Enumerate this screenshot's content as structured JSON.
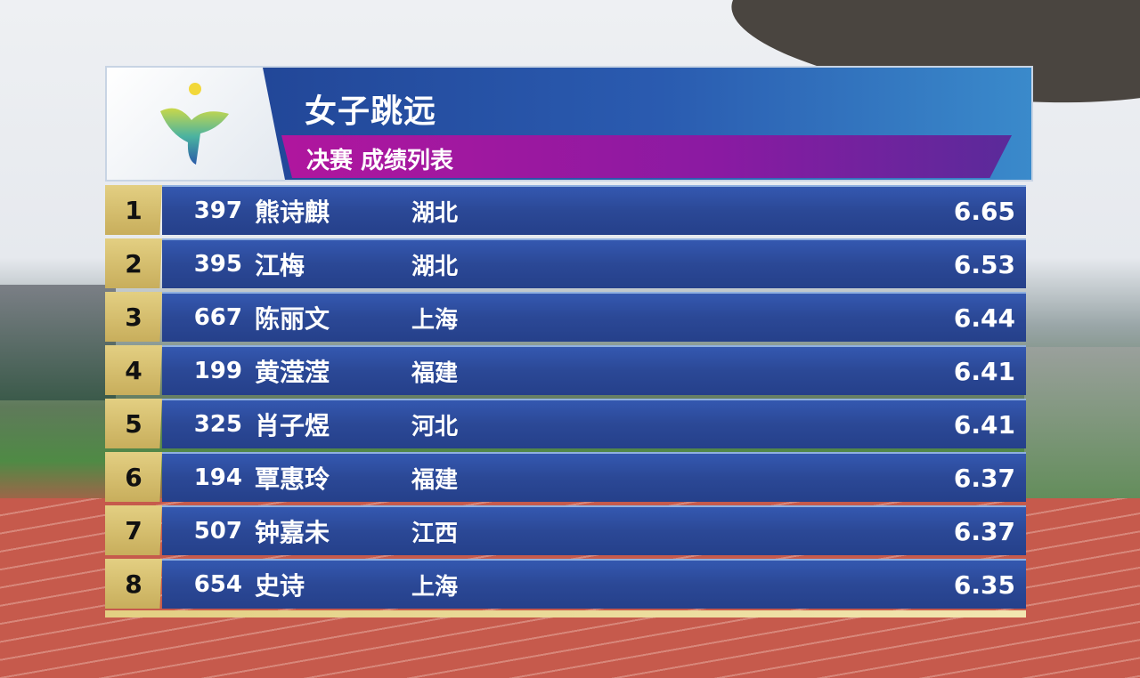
{
  "header": {
    "title": "女子跳远",
    "subtitle": "决赛 成绩列表"
  },
  "colors": {
    "rank_gold": "#d9c272",
    "bar_blue": "#2b4896",
    "subtitle_magenta": "#b0169e"
  },
  "results": [
    {
      "rank": "1",
      "bib": "397",
      "name": "熊诗麒",
      "province": "湖北",
      "result": "6.65"
    },
    {
      "rank": "2",
      "bib": "395",
      "name": "江梅",
      "province": "湖北",
      "result": "6.53"
    },
    {
      "rank": "3",
      "bib": "667",
      "name": "陈丽文",
      "province": "上海",
      "result": "6.44"
    },
    {
      "rank": "4",
      "bib": "199",
      "name": "黄滢滢",
      "province": "福建",
      "result": "6.41"
    },
    {
      "rank": "5",
      "bib": "325",
      "name": "肖子煜",
      "province": "河北",
      "result": "6.41"
    },
    {
      "rank": "6",
      "bib": "194",
      "name": "覃惠玲",
      "province": "福建",
      "result": "6.37"
    },
    {
      "rank": "7",
      "bib": "507",
      "name": "钟嘉未",
      "province": "江西",
      "result": "6.37"
    },
    {
      "rank": "8",
      "bib": "654",
      "name": "史诗",
      "province": "上海",
      "result": "6.35"
    }
  ]
}
